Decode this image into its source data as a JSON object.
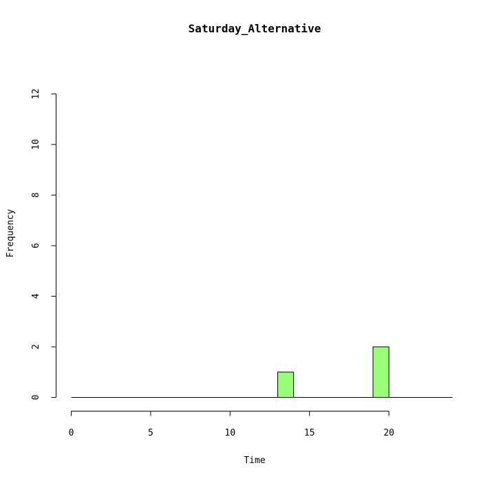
{
  "chart_data": {
    "type": "bar",
    "title": "Saturday_Alternative",
    "xlabel": "Time",
    "ylabel": "Frequency",
    "bin_width": 1,
    "bins": [
      {
        "start": 0,
        "end": 1,
        "value": 0
      },
      {
        "start": 1,
        "end": 2,
        "value": 0
      },
      {
        "start": 2,
        "end": 3,
        "value": 0
      },
      {
        "start": 3,
        "end": 4,
        "value": 0
      },
      {
        "start": 4,
        "end": 5,
        "value": 0
      },
      {
        "start": 5,
        "end": 6,
        "value": 0
      },
      {
        "start": 6,
        "end": 7,
        "value": 0
      },
      {
        "start": 7,
        "end": 8,
        "value": 0
      },
      {
        "start": 8,
        "end": 9,
        "value": 0
      },
      {
        "start": 9,
        "end": 10,
        "value": 0
      },
      {
        "start": 10,
        "end": 11,
        "value": 0
      },
      {
        "start": 11,
        "end": 12,
        "value": 0
      },
      {
        "start": 12,
        "end": 13,
        "value": 0
      },
      {
        "start": 13,
        "end": 14,
        "value": 1
      },
      {
        "start": 14,
        "end": 15,
        "value": 0
      },
      {
        "start": 15,
        "end": 16,
        "value": 0
      },
      {
        "start": 16,
        "end": 17,
        "value": 0
      },
      {
        "start": 17,
        "end": 18,
        "value": 0
      },
      {
        "start": 18,
        "end": 19,
        "value": 0
      },
      {
        "start": 19,
        "end": 20,
        "value": 2
      },
      {
        "start": 20,
        "end": 21,
        "value": 0
      },
      {
        "start": 21,
        "end": 22,
        "value": 0
      },
      {
        "start": 22,
        "end": 23,
        "value": 0
      },
      {
        "start": 23,
        "end": 24,
        "value": 0
      }
    ],
    "xlim": [
      0,
      24
    ],
    "ylim": [
      0,
      12
    ],
    "x_ticks": [
      "0",
      "5",
      "10",
      "15",
      "20"
    ],
    "y_ticks": [
      "0",
      "2",
      "4",
      "6",
      "8",
      "10",
      "12"
    ],
    "bar_color": "#99ff77",
    "edge_color": "#000000",
    "grid": false,
    "legend": "none"
  }
}
